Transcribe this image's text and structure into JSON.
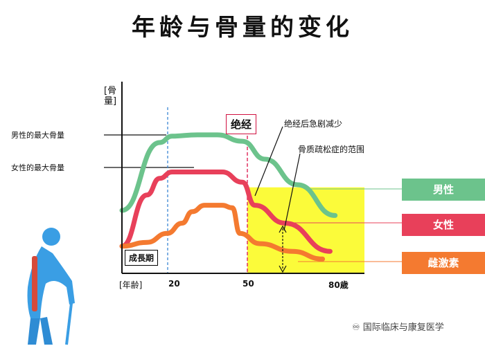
{
  "title": "年龄与骨量的变化",
  "chart_data": {
    "type": "line",
    "title": "年龄与骨量的变化",
    "xlabel": "[年齢]",
    "ylabel": "[骨量]",
    "xticks": [
      "20",
      "50",
      "80歳"
    ],
    "series": [
      {
        "name": "男性",
        "color": "#6cc38c",
        "x": [
          0,
          15,
          20,
          30,
          38,
          48,
          57,
          70,
          85
        ],
        "y": [
          0.4,
          0.93,
          0.98,
          0.99,
          0.99,
          0.94,
          0.8,
          0.6,
          0.36
        ]
      },
      {
        "name": "女性",
        "color": "#e8405a",
        "x": [
          0,
          10,
          15,
          20,
          30,
          40,
          48,
          53,
          65,
          83
        ],
        "y": [
          0.12,
          0.52,
          0.65,
          0.7,
          0.7,
          0.7,
          0.62,
          0.44,
          0.3,
          0.08
        ]
      },
      {
        "name": "雌激素",
        "color": "#f47a30",
        "x": [
          0,
          10,
          18,
          24,
          28,
          33,
          40,
          44,
          47,
          55,
          68,
          80
        ],
        "y": [
          0.12,
          0.15,
          0.22,
          0.3,
          0.39,
          0.44,
          0.44,
          0.42,
          0.22,
          0.14,
          0.08,
          0.02
        ]
      }
    ],
    "annotations": {
      "menopause": "绝经",
      "rapid_decline": "绝经后急剧减少",
      "osteoporosis_range": "骨质疏松症的范围",
      "growth_period": "成長期",
      "male_peak": "男性的最大骨量",
      "female_peak": "女性的最大骨量"
    },
    "menopause_x": 50,
    "growth_end_x": 20,
    "osteoporosis_band": {
      "y_max": 0.58,
      "color": "#fbfb3a"
    },
    "grid": false
  },
  "watermark": "国际临床与康复医学"
}
